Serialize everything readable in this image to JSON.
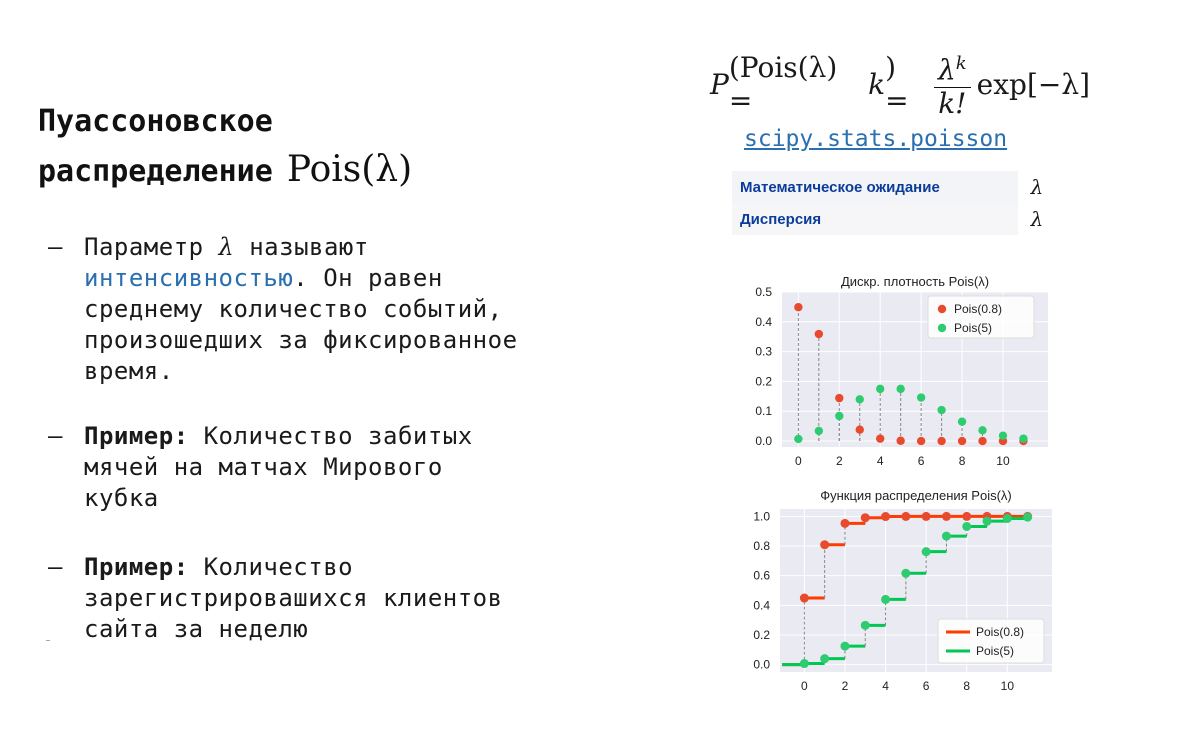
{
  "title": {
    "line1": "Пуассоновское",
    "line2": "распределение",
    "math": "Pois(λ)"
  },
  "bullets": [
    {
      "dash": "–",
      "pre": "Параметр ",
      "lambda": "λ",
      "mid": " называют ",
      "link": "интенсивностью",
      "post": ". Он равен среднему количество событий, произошедших за фиксированное время."
    },
    {
      "dash": "–",
      "strong": "Пример:",
      "text": " Количество забитых мячей на матчах Мирового кубка"
    },
    {
      "dash": "–",
      "strong": "Пример:",
      "text": " Количество зарегистрировашихся клиентов сайта за неделю"
    }
  ],
  "formula": {
    "lhs_p": "P",
    "lhs_rest": "(Pois(λ) = ",
    "lhs_k": "k",
    "lhs_end": ") =",
    "num": "λ",
    "num_sup": "k",
    "den": "k!",
    "rhs": "exp[−λ]"
  },
  "link": {
    "label": "scipy.stats.poisson"
  },
  "stats": [
    {
      "label": "Математическое ожидание",
      "value": "λ"
    },
    {
      "label": "Дисперсия",
      "value": "λ"
    }
  ],
  "colors": {
    "red": "#e84a2e",
    "green": "#2ecc71",
    "red_line": "#ff3b00",
    "green_line": "#00c853",
    "plot_bg": "#eaeaf2",
    "link": "#2a6fb0"
  },
  "chart_data": [
    {
      "type": "scatter",
      "title": "Дискр. плотность Pois(λ)",
      "x": [
        0,
        1,
        2,
        3,
        4,
        5,
        6,
        7,
        8,
        9,
        10,
        11
      ],
      "series": [
        {
          "name": "Pois(0.8)",
          "values": [
            0.449,
            0.359,
            0.144,
            0.038,
            0.008,
            0.001,
            0.0,
            0.0,
            0.0,
            0.0,
            0.0,
            0.0
          ]
        },
        {
          "name": "Pois(5)",
          "values": [
            0.007,
            0.034,
            0.084,
            0.14,
            0.175,
            0.175,
            0.146,
            0.104,
            0.065,
            0.036,
            0.018,
            0.008
          ]
        }
      ],
      "xticks": [
        "0",
        "2",
        "4",
        "6",
        "8",
        "10"
      ],
      "yticks": [
        "0.0",
        "0.1",
        "0.2",
        "0.3",
        "0.4",
        "0.5"
      ],
      "xlim": [
        -0.8,
        12.2
      ],
      "ylim": [
        -0.02,
        0.5
      ],
      "grid": true,
      "legend": "top-right"
    },
    {
      "type": "line",
      "title": "Функция распределения Pois(λ)",
      "x": [
        0,
        1,
        2,
        3,
        4,
        5,
        6,
        7,
        8,
        9,
        10,
        11
      ],
      "series": [
        {
          "name": "Pois(0.8)",
          "values": [
            0.449,
            0.809,
            0.953,
            0.991,
            0.999,
            1.0,
            1.0,
            1.0,
            1.0,
            1.0,
            1.0,
            1.0
          ]
        },
        {
          "name": "Pois(5)",
          "values": [
            0.007,
            0.04,
            0.125,
            0.265,
            0.44,
            0.616,
            0.762,
            0.867,
            0.932,
            0.968,
            0.986,
            0.995
          ]
        }
      ],
      "xticks": [
        "0",
        "2",
        "4",
        "6",
        "8",
        "10"
      ],
      "yticks": [
        "0.0",
        "0.2",
        "0.4",
        "0.6",
        "0.8",
        "1.0"
      ],
      "xlim": [
        -1.2,
        12.2
      ],
      "ylim": [
        -0.05,
        1.05
      ],
      "grid": true,
      "legend": "bottom-right"
    }
  ]
}
